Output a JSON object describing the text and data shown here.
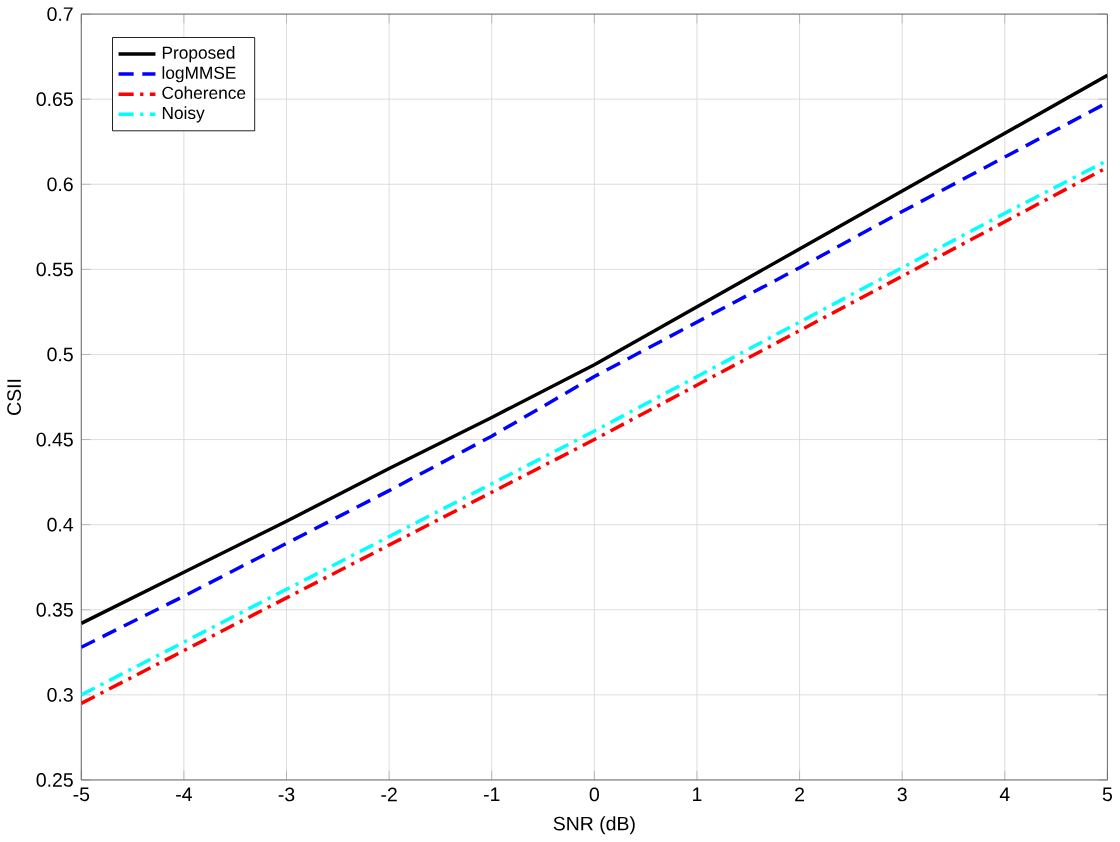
{
  "chart_data": {
    "type": "line",
    "xlabel": "SNR (dB)",
    "ylabel": "CSII",
    "x": [
      -5,
      -4,
      -3,
      -2,
      -1,
      0,
      1,
      2,
      3,
      4,
      5
    ],
    "series": [
      {
        "name": "Proposed",
        "color": "#000000",
        "line_style": "solid",
        "values": [
          0.342,
          0.372,
          0.402,
          0.433,
          0.463,
          0.494,
          0.528,
          0.562,
          0.596,
          0.63,
          0.664
        ]
      },
      {
        "name": "logMMSE",
        "color": "#0000ff",
        "line_style": "dashed",
        "values": [
          0.328,
          0.358,
          0.389,
          0.42,
          0.452,
          0.487,
          0.519,
          0.551,
          0.584,
          0.616,
          0.648
        ]
      },
      {
        "name": "Coherence",
        "color": "#ff0000",
        "line_style": "dashdot",
        "values": [
          0.295,
          0.326,
          0.357,
          0.388,
          0.419,
          0.45,
          0.482,
          0.514,
          0.546,
          0.578,
          0.61
        ]
      },
      {
        "name": "Noisy",
        "color": "#00ffff",
        "line_style": "dashdot",
        "values": [
          0.3,
          0.331,
          0.362,
          0.393,
          0.424,
          0.455,
          0.487,
          0.519,
          0.551,
          0.583,
          0.614
        ]
      }
    ],
    "xlim": [
      -5,
      5
    ],
    "ylim": [
      0.25,
      0.7
    ],
    "xticks": [
      -5,
      -4,
      -3,
      -2,
      -1,
      0,
      1,
      2,
      3,
      4,
      5
    ],
    "yticks": [
      0.25,
      0.3,
      0.35,
      0.4,
      0.45,
      0.5,
      0.55,
      0.6,
      0.65,
      0.7
    ],
    "grid": true,
    "legend": "top left",
    "marker": "none"
  }
}
